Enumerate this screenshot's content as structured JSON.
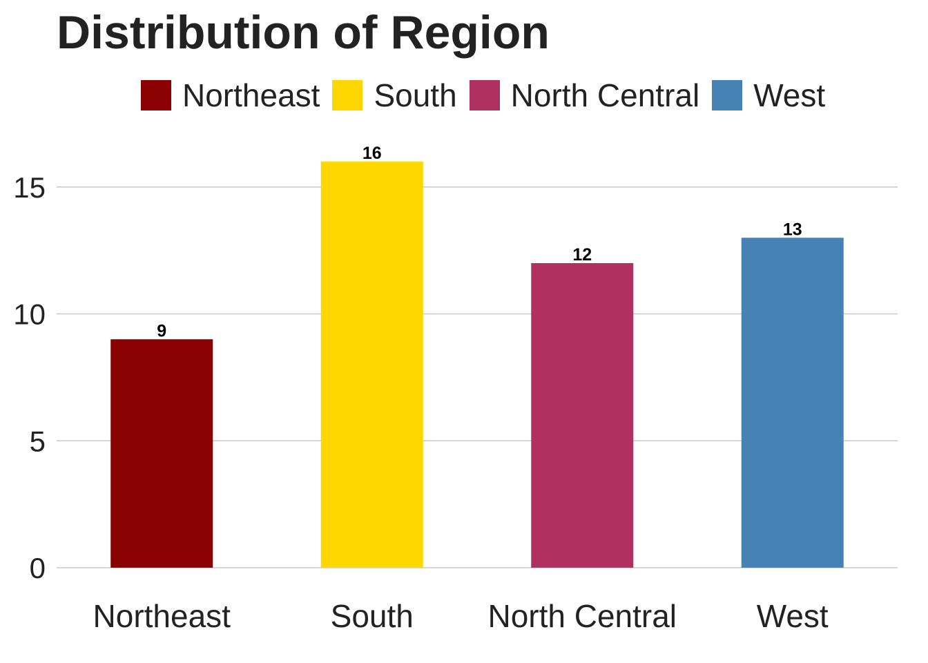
{
  "chart_data": {
    "type": "bar",
    "title": "Distribution of Region",
    "categories": [
      "Northeast",
      "South",
      "North Central",
      "West"
    ],
    "values": [
      9,
      16,
      12,
      13
    ],
    "colors": [
      "#8B0000",
      "#FFD700",
      "#B03060",
      "#4682B4"
    ],
    "yticks": [
      0,
      5,
      10,
      15
    ],
    "ylim": [
      0,
      16
    ],
    "xlabel": "",
    "ylabel": "",
    "grid": "horizontal",
    "legend": {
      "placement": "top",
      "entries": [
        "Northeast",
        "South",
        "North Central",
        "West"
      ]
    },
    "data_labels": [
      "9",
      "16",
      "12",
      "13"
    ]
  }
}
